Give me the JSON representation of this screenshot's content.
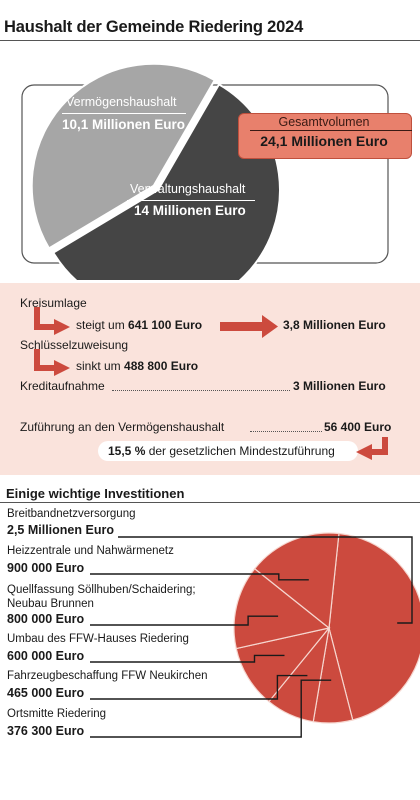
{
  "title": "Haushalt der Gemeinde Riedering 2024",
  "budget": {
    "vermoegen_label": "Vermögenshaushalt",
    "vermoegen_value": "10,1 Millionen Euro",
    "verwaltung_label": "Verwaltungshaushalt",
    "verwaltung_value": "14 Millionen Euro",
    "total_label": "Gesamtvolumen",
    "total_value": "24,1 Millionen Euro"
  },
  "info": {
    "kreisumlage_label": "Kreisumlage",
    "kreisumlage_change_pre": "steigt um",
    "kreisumlage_change_val": "641 100 Euro",
    "kreisumlage_result": "3,8 Millionen Euro",
    "schluessel_label": "Schlüsselzuweisung",
    "schluessel_change_pre": "sinkt um",
    "schluessel_change_val": "488 800 Euro",
    "kredit_label": "Kreditaufnahme",
    "kredit_value": "3 Millionen Euro",
    "zufuehrung_label": "Zuführung an den Vermögenshaushalt",
    "zufuehrung_value": "56 400 Euro",
    "min_pct": "15,5 %",
    "min_text": "der gesetzlichen Mindestzuführung"
  },
  "investments_title": "Einige wichtige Investitionen",
  "colors": {
    "vermoegen": "#a6a6a6",
    "verwaltung": "#454545",
    "accent": "#cc4a3e",
    "panel": "#fae3dc"
  },
  "chart_data": [
    {
      "type": "pie",
      "title": "Haushalt der Gemeinde Riedering 2024",
      "unit": "Millionen Euro",
      "slices": [
        {
          "name": "Vermögenshaushalt",
          "value": 10.1
        },
        {
          "name": "Verwaltungshaushalt",
          "value": 14
        }
      ],
      "total": 24.1
    },
    {
      "type": "pie",
      "title": "Einige wichtige Investitionen",
      "unit": "Euro",
      "slices": [
        {
          "name": "Breitbandnetzversorgung",
          "value": 2500000,
          "label": "2,5 Millionen Euro"
        },
        {
          "name": "Heizzentrale und Nahwärmenetz",
          "value": 900000,
          "label": "900 000 Euro"
        },
        {
          "name": "Quellfassung Söllhuben/Schaidering; Neubau Brunnen",
          "value": 800000,
          "label": "800 000 Euro"
        },
        {
          "name": "Umbau des FFW-Hauses Riedering",
          "value": 600000,
          "label": "600 000 Euro"
        },
        {
          "name": "Fahrzeugbeschaffung FFW Neukirchen",
          "value": 465000,
          "label": "465 000 Euro"
        },
        {
          "name": "Ortsmitte Riedering",
          "value": 376300,
          "label": "376 300 Euro"
        }
      ]
    }
  ]
}
